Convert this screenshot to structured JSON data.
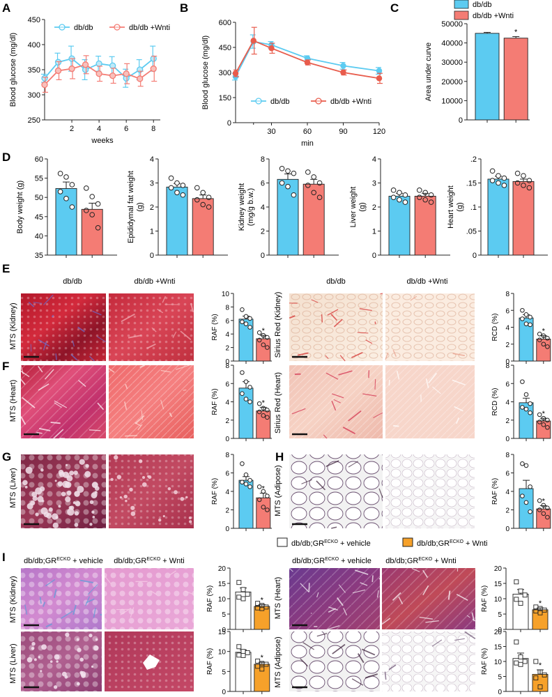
{
  "panel_letters": [
    "A",
    "B",
    "C",
    "D",
    "E",
    "F",
    "G",
    "H",
    "I"
  ],
  "colors": {
    "dbdb": "#5ccbf1",
    "wnti": "#f47c74",
    "wnti_line": "#e85c4c",
    "gr_wnti": "#f6a12a",
    "axis": "#222222"
  },
  "strings": {
    "sup": "ECKO",
    "col_dbdb": "db/db",
    "col_wnti": "db/db +Wnti",
    "col_gr_vehicle_prefix": "db/db;GR",
    "col_gr_vehicle_suffix": " + vehicle",
    "col_gr_wnti_suffix": " + Wnti",
    "row_mts_kidney": "MTS (Kidney)",
    "row_mts_heart": "MTS (Heart)",
    "row_mts_liver": "MTS (Liver)",
    "row_mts_adipose": "MTS (Adipose)",
    "row_sr_kidney": "Sirius Red (Kidney)",
    "row_sr_heart": "Sirius Red (Heart)",
    "legend_gr_vehicle": "db/db;GR",
    "legend_gr_vehicle_tail": " + vehicle",
    "legend_gr_wnti_tail": " + Wnti"
  },
  "chart_data": [
    {
      "id": "A",
      "type": "line",
      "xlabel": "weeks",
      "ylabel": "Blood glucose (mg/dl)",
      "ylim": [
        250,
        450
      ],
      "yticks": [
        250,
        300,
        350,
        400,
        450
      ],
      "xlim": [
        0,
        8.5
      ],
      "xticks": [
        2,
        4,
        6,
        8
      ],
      "series": [
        {
          "name": "db/db",
          "color": "dbdb",
          "x": [
            0,
            1,
            2,
            3,
            4,
            5,
            6,
            7,
            8
          ],
          "y": [
            333,
            365,
            372,
            350,
            362,
            358,
            333,
            350,
            372
          ],
          "err": [
            8,
            18,
            25,
            20,
            15,
            18,
            18,
            20,
            25
          ]
        },
        {
          "name": "db/db +Wnti",
          "color": "wnti",
          "x": [
            0,
            1,
            2,
            3,
            4,
            5,
            6,
            7,
            8
          ],
          "y": [
            320,
            348,
            352,
            360,
            342,
            338,
            342,
            332,
            352
          ],
          "err": [
            15,
            18,
            20,
            18,
            15,
            15,
            20,
            15,
            25
          ]
        }
      ]
    },
    {
      "id": "B",
      "type": "line",
      "xlabel": "min",
      "ylabel": "Blood glucose (mg/dl)",
      "ylim": [
        0,
        600
      ],
      "yticks": [
        0,
        150,
        300,
        450,
        600
      ],
      "xlim": [
        0,
        120
      ],
      "xticks": [
        30,
        60,
        90,
        120
      ],
      "legend": "bottom-center",
      "series": [
        {
          "name": "db/db",
          "color": "dbdb",
          "x": [
            0,
            15,
            30,
            60,
            90,
            120
          ],
          "y": [
            275,
            485,
            465,
            385,
            340,
            310
          ],
          "err": [
            20,
            40,
            20,
            15,
            20,
            20
          ]
        },
        {
          "name": "db/db +Wnti",
          "color": "wnti_line",
          "x": [
            0,
            15,
            30,
            60,
            90,
            120
          ],
          "y": [
            295,
            490,
            445,
            360,
            300,
            265
          ],
          "err": [
            20,
            80,
            30,
            15,
            15,
            30
          ]
        }
      ]
    },
    {
      "id": "C",
      "type": "bar",
      "ylabel": "Area under curve",
      "ylim": [
        0,
        50000
      ],
      "yticks": [
        0,
        10000,
        20000,
        30000,
        40000,
        50000
      ],
      "categories": [
        "db/db",
        "db/db +Wnti"
      ],
      "values": [
        45000,
        42500
      ],
      "err": [
        500,
        800
      ],
      "sig": [
        false,
        true
      ],
      "legend": "top"
    },
    {
      "id": "D1",
      "type": "bar",
      "ylabel": "Body weight (g)",
      "ylabel2": "",
      "ylim": [
        35,
        60
      ],
      "yticks": [
        35,
        40,
        45,
        50,
        55,
        60
      ],
      "values": [
        52.3,
        46.9
      ],
      "err": [
        1.7,
        1.6
      ],
      "points": [
        [
          56.2,
          55.3,
          53.3,
          51.5,
          49.7,
          47.5
        ],
        [
          52.4,
          50.2,
          48.3,
          46.6,
          45.5,
          42.1
        ]
      ]
    },
    {
      "id": "D2",
      "type": "bar",
      "ylabel": "Epididymal fat weight",
      "ylabel2": "(g)",
      "ylim": [
        0,
        4
      ],
      "yticks": [
        0,
        1,
        2,
        3,
        4
      ],
      "values": [
        2.83,
        2.35
      ],
      "err": [
        0.15,
        0.15
      ],
      "points": [
        [
          3.2,
          3.0,
          2.9,
          2.8,
          2.6,
          2.5
        ],
        [
          2.8,
          2.6,
          2.4,
          2.3,
          2.1,
          2.0
        ]
      ]
    },
    {
      "id": "D3",
      "type": "bar",
      "ylabel": "Kidney weight",
      "ylabel2": "(mg/g b.w.)",
      "ylim": [
        0,
        8
      ],
      "yticks": [
        0,
        2,
        4,
        6,
        8
      ],
      "values": [
        6.3,
        5.9
      ],
      "err": [
        0.45,
        0.4
      ],
      "points": [
        [
          7.2,
          7.0,
          6.8,
          6.0,
          5.7,
          5.0
        ],
        [
          6.9,
          6.5,
          6.0,
          5.8,
          5.2,
          4.8
        ]
      ]
    },
    {
      "id": "D4",
      "type": "bar",
      "ylabel": "Liver weight",
      "ylabel2": "(g)",
      "ylim": [
        0,
        4
      ],
      "yticks": [
        0,
        1,
        2,
        3,
        4
      ],
      "values": [
        2.45,
        2.45
      ],
      "err": [
        0.12,
        0.12
      ],
      "points": [
        [
          2.7,
          2.6,
          2.5,
          2.4,
          2.3,
          2.2
        ],
        [
          2.7,
          2.6,
          2.5,
          2.4,
          2.3,
          2.2
        ]
      ]
    },
    {
      "id": "D5",
      "type": "bar",
      "ylabel": "Heart weight",
      "ylabel2": "(g)",
      "ylim": [
        0,
        0.2
      ],
      "yticks": [
        0,
        0.05,
        0.1,
        0.15,
        0.2
      ],
      "yticklabels": [
        "0",
        ".05",
        ".1",
        ".15",
        ".2"
      ],
      "values": [
        0.158,
        0.153
      ],
      "err": [
        0.006,
        0.005
      ],
      "points": [
        [
          0.175,
          0.165,
          0.16,
          0.155,
          0.15,
          0.145
        ],
        [
          0.17,
          0.165,
          0.155,
          0.15,
          0.145,
          0.14
        ]
      ]
    },
    {
      "id": "E1",
      "type": "bar",
      "ylabel": "RAF (%)",
      "ylim": [
        0,
        10
      ],
      "yticks": [
        0,
        2,
        4,
        6,
        8,
        10
      ],
      "values": [
        6.2,
        3.3
      ],
      "err": [
        0.45,
        0.5
      ],
      "sig": [
        false,
        true
      ],
      "points": [
        [
          7.6,
          6.6,
          6.3,
          5.8,
          5.5,
          5.0
        ],
        [
          4.2,
          3.8,
          3.5,
          3.1,
          2.4,
          2.0
        ]
      ]
    },
    {
      "id": "E2",
      "type": "bar",
      "ylabel": "RCD (%)",
      "ylim": [
        0,
        8
      ],
      "yticks": [
        0,
        2,
        4,
        6,
        8
      ],
      "values": [
        5.1,
        2.6
      ],
      "err": [
        0.4,
        0.4
      ],
      "sig": [
        false,
        true
      ],
      "points": [
        [
          6.0,
          5.5,
          5.2,
          5.0,
          4.4,
          4.3
        ],
        [
          3.2,
          3.0,
          2.7,
          2.5,
          2.0,
          1.7
        ]
      ]
    },
    {
      "id": "F1",
      "type": "bar",
      "ylabel": "RAF (%)",
      "ylim": [
        0,
        8
      ],
      "yticks": [
        0,
        2,
        4,
        6,
        8
      ],
      "values": [
        5.5,
        3.0
      ],
      "err": [
        0.7,
        0.4
      ],
      "sig": [
        false,
        true
      ],
      "points": [
        [
          7.2,
          6.2,
          5.6,
          4.9,
          4.3,
          4.0
        ],
        [
          3.8,
          3.3,
          3.1,
          2.9,
          2.5,
          2.3
        ]
      ]
    },
    {
      "id": "F2",
      "type": "bar",
      "ylabel": "RCD (%)",
      "ylim": [
        0,
        8
      ],
      "yticks": [
        0,
        2,
        4,
        6,
        8
      ],
      "values": [
        3.9,
        1.9
      ],
      "err": [
        0.5,
        0.3
      ],
      "sig": [
        false,
        true
      ],
      "points": [
        [
          6.2,
          4.8,
          3.8,
          3.4,
          3.2,
          2.8
        ],
        [
          2.6,
          2.2,
          2.0,
          1.8,
          1.5,
          1.2
        ]
      ]
    },
    {
      "id": "G",
      "type": "bar",
      "ylabel": "RAF (%)",
      "ylim": [
        0,
        8
      ],
      "yticks": [
        0,
        2,
        4,
        6,
        8
      ],
      "values": [
        5.2,
        3.3
      ],
      "err": [
        0.4,
        0.5
      ],
      "sig": [
        false,
        true
      ],
      "points": [
        [
          7.0,
          5.8,
          5.2,
          5.0,
          4.8,
          4.5
        ],
        [
          4.5,
          4.0,
          3.5,
          3.1,
          2.3,
          2.0
        ]
      ]
    },
    {
      "id": "H",
      "type": "bar",
      "ylabel": "RAF (%)",
      "ylim": [
        0,
        8
      ],
      "yticks": [
        0,
        2,
        4,
        6,
        8
      ],
      "values": [
        4.3,
        2.1
      ],
      "err": [
        0.9,
        0.35
      ],
      "sig": [
        false,
        true
      ],
      "points": [
        [
          7.0,
          6.8,
          4.5,
          3.5,
          2.8,
          1.8
        ],
        [
          3.0,
          2.5,
          2.2,
          2.0,
          1.6,
          1.2
        ]
      ]
    },
    {
      "id": "I1",
      "type": "bar",
      "ylabel": "RAF (%)",
      "ylim": [
        0,
        20
      ],
      "yticks": [
        0,
        5,
        10,
        15,
        20
      ],
      "values": [
        12.2,
        7.5
      ],
      "err": [
        1.3,
        0.6
      ],
      "sig": [
        false,
        true
      ],
      "points": [
        [
          15.3,
          13.0,
          11.5,
          10.5,
          10.0
        ],
        [
          8.5,
          7.8,
          7.3,
          7.0,
          6.8
        ]
      ]
    },
    {
      "id": "I2",
      "type": "bar",
      "ylabel": "RAF (%)",
      "ylim": [
        0,
        15
      ],
      "yticks": [
        0,
        5,
        10,
        15
      ],
      "values": [
        9.8,
        6.8
      ],
      "err": [
        0.6,
        0.5
      ],
      "sig": [
        false,
        true
      ],
      "points": [
        [
          11.2,
          10.0,
          9.7,
          9.1,
          9.0
        ],
        [
          7.6,
          7.0,
          6.8,
          6.3,
          5.6
        ]
      ]
    },
    {
      "id": "I3",
      "type": "bar",
      "ylabel": "RAF (%)",
      "ylim": [
        0,
        20
      ],
      "yticks": [
        0,
        5,
        10,
        15,
        20
      ],
      "values": [
        11.5,
        6.4
      ],
      "err": [
        1.5,
        0.6
      ],
      "sig": [
        false,
        true
      ],
      "points": [
        [
          15.5,
          12.5,
          11.2,
          9.8,
          8.5
        ],
        [
          7.3,
          6.8,
          6.3,
          6.0,
          5.4
        ]
      ]
    },
    {
      "id": "I4",
      "type": "bar",
      "ylabel": "RAF (%)",
      "ylim": [
        0,
        20
      ],
      "yticks": [
        0,
        5,
        10,
        15,
        20
      ],
      "values": [
        11.0,
        5.7
      ],
      "err": [
        1.8,
        1.5
      ],
      "sig": [
        false,
        true
      ],
      "points": [
        [
          16.5,
          11.5,
          10.0,
          9.5,
          9.0
        ],
        [
          10.0,
          6.5,
          5.5,
          4.5,
          1.5
        ]
      ]
    }
  ]
}
